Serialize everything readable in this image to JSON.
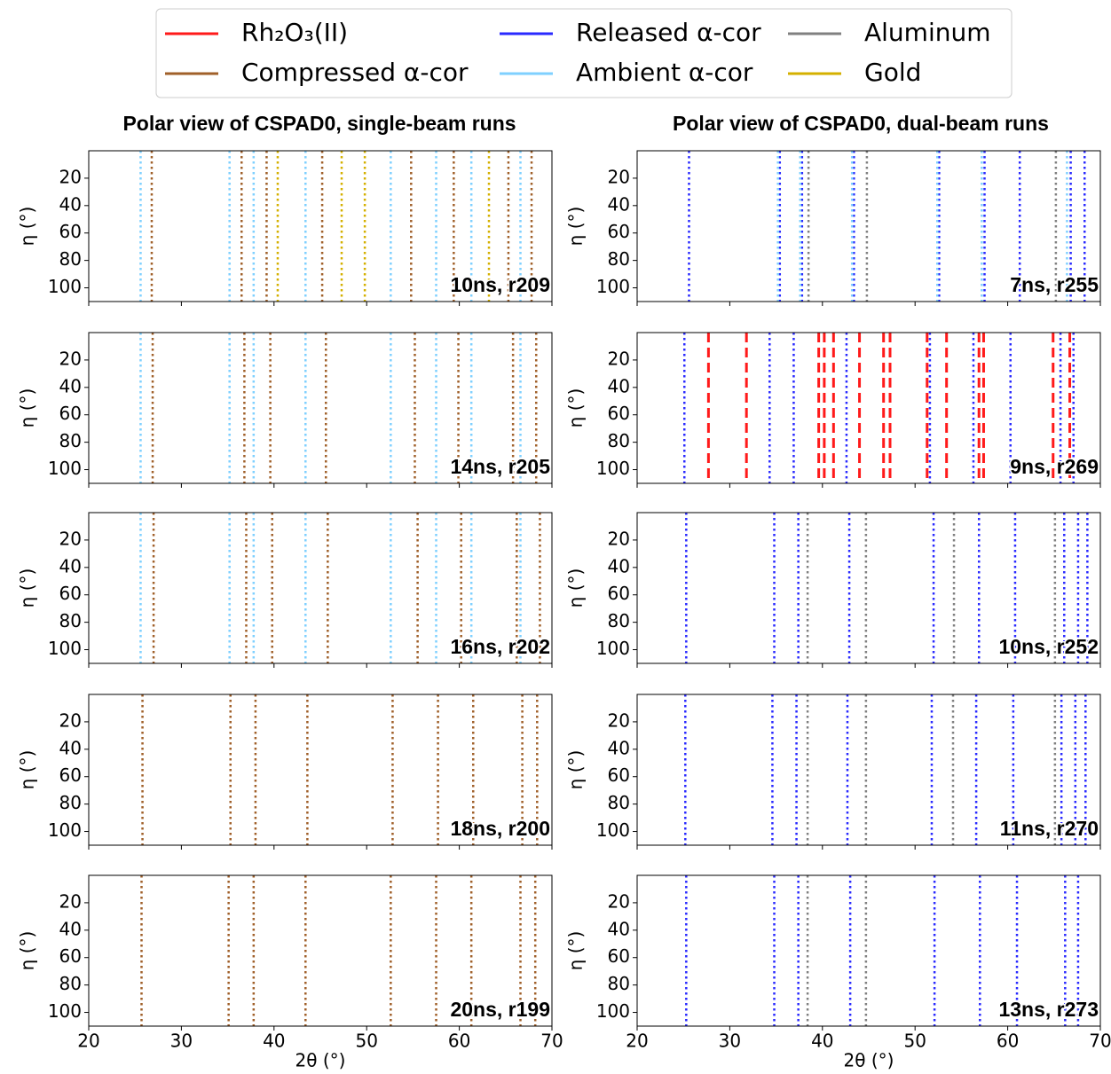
{
  "chart_data": {
    "type": "polar-image",
    "column_titles": [
      "Polar view of CSPAD0, single-beam runs",
      "Polar view of CSPAD0, dual-beam runs"
    ],
    "xlabel": "2θ (°)",
    "ylabel": "η (°)",
    "xlim": [
      20,
      70
    ],
    "xticks": [
      20,
      30,
      40,
      50,
      60,
      70
    ],
    "ylim": [
      110,
      0
    ],
    "yticks": [
      20,
      40,
      60,
      80,
      100
    ],
    "panels": [
      "10ns, r209",
      "14ns, r205",
      "16ns, r202",
      "18ns, r200",
      "20ns, r199",
      "7ns, r255",
      "9ns, r269",
      "10ns, r252",
      "11ns, r270",
      "13ns, r273"
    ],
    "series": [
      {
        "name": "Rh₂O₃(II)",
        "color": "#ff1a1a",
        "style": "dashed",
        "values": [
          [],
          [],
          [],
          [],
          [],
          [],
          [
            27.7,
            31.8,
            39.6,
            40.2,
            41.2,
            44,
            46.6,
            47.3,
            51.3,
            53.4,
            56.9,
            57.4,
            64.9,
            66.7
          ],
          [],
          [],
          []
        ]
      },
      {
        "name": "Compressed α-cor",
        "color": "#a0602a",
        "style": "dotted",
        "values": [
          [
            26.8,
            36.5,
            39.2,
            45.2,
            54.8,
            59.4,
            65.3,
            67.8
          ],
          [
            26.9,
            36.8,
            39.6,
            45.6,
            55.2,
            59.9,
            65.8,
            68.3
          ],
          [
            27,
            37,
            39.8,
            45.8,
            55.5,
            60.2,
            66.2,
            68.7
          ],
          [
            25.8,
            35.3,
            38,
            43.6,
            52.8,
            57.7,
            61.5,
            66.8,
            68.4
          ],
          [
            25.7,
            35.1,
            37.8,
            43.4,
            52.6,
            57.5,
            61.3,
            66.6,
            68.2
          ],
          [],
          [],
          [],
          [],
          []
        ]
      },
      {
        "name": "Released α-cor",
        "color": "#2a2aff",
        "style": "dotted",
        "values": [
          [],
          [],
          [],
          [],
          [],
          [
            25.6,
            35.4,
            37.8,
            43.4,
            52.6,
            57.5,
            61.3,
            66.8,
            68.3
          ],
          [
            25.1,
            34.3,
            36.9,
            42.6,
            51.6,
            56.3,
            60.3,
            65.7,
            67.1
          ],
          [
            25.3,
            34.8,
            37.4,
            42.9,
            52,
            56.9,
            60.8,
            66.1,
            67.6,
            68.6
          ],
          [
            25.2,
            34.6,
            37.2,
            42.7,
            51.8,
            56.6,
            60.6,
            65.8,
            67.3,
            68.4
          ],
          [
            25.3,
            34.8,
            37.4,
            43,
            52.1,
            57,
            61,
            66.2,
            67.6
          ]
        ]
      },
      {
        "name": "Ambient α-cor",
        "color": "#7fd0ff",
        "style": "dotted",
        "values": [
          [
            25.6,
            35.2,
            37.8,
            43.4,
            52.6,
            57.5,
            61.3,
            66.6
          ],
          [
            25.6,
            35.2,
            37.8,
            43.4,
            52.6,
            57.5,
            61.3,
            66.6
          ],
          [
            25.6,
            35.2,
            37.8,
            43.4,
            52.6,
            57.5,
            61.3,
            66.6
          ],
          [],
          [],
          [
            35.2,
            37.6,
            43.2,
            52.4,
            57.2,
            66.4
          ],
          [],
          [],
          [],
          []
        ]
      },
      {
        "name": "Aluminum",
        "color": "#808080",
        "style": "dotted",
        "values": [
          [],
          [],
          [],
          [],
          [],
          [
            38.5,
            44.8,
            65.2
          ],
          [],
          [
            38.4,
            44.7,
            54.2,
            65.1
          ],
          [
            38.4,
            44.7,
            54.1,
            65.1
          ],
          [
            38.4,
            44.7
          ]
        ]
      },
      {
        "name": "Gold",
        "color": "#d4b000",
        "style": "dotted",
        "values": [
          [
            40.4,
            47.3,
            49.8,
            63.2
          ],
          [],
          [],
          [],
          [],
          [],
          [],
          [],
          [],
          []
        ]
      }
    ]
  }
}
